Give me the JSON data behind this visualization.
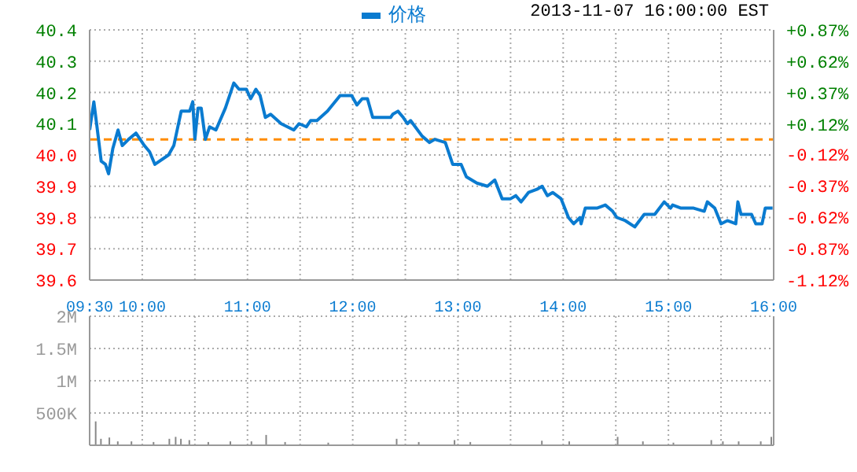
{
  "chart_data": [
    {
      "type": "line",
      "subtitle": "2013-11-07 16:00:00 EST",
      "legend": "top",
      "series": [
        {
          "name": "价格",
          "color": "#0a7bd0",
          "x": [
            9.5,
            9.54,
            9.57,
            9.61,
            9.65,
            9.68,
            9.72,
            9.77,
            9.81,
            9.87,
            9.94,
            10.02,
            10.07,
            10.12,
            10.25,
            10.3,
            10.37,
            10.45,
            10.48,
            10.5,
            10.53,
            10.56,
            10.6,
            10.64,
            10.7,
            10.79,
            10.87,
            10.92,
            10.99,
            11.03,
            11.08,
            11.12,
            11.17,
            11.22,
            11.32,
            11.44,
            11.49,
            11.56,
            11.6,
            11.66,
            11.76,
            11.88,
            11.91,
            11.99,
            12.04,
            12.09,
            12.14,
            12.19,
            12.36,
            12.38,
            12.43,
            12.48,
            12.52,
            12.55,
            12.66,
            12.73,
            12.78,
            12.88,
            12.95,
            13.03,
            13.08,
            13.18,
            13.28,
            13.35,
            13.42,
            13.5,
            13.55,
            13.6,
            13.67,
            13.75,
            13.8,
            13.85,
            13.9,
            13.98,
            14.05,
            14.1,
            14.16,
            14.17,
            14.21,
            14.25,
            14.32,
            14.4,
            14.47,
            14.51,
            14.59,
            14.68,
            14.77,
            14.87,
            14.96,
            15.02,
            15.04,
            15.12,
            15.24,
            15.34,
            15.37,
            15.44,
            15.5,
            15.56,
            15.64,
            15.66,
            15.69,
            15.79,
            15.83,
            15.89,
            15.92,
            15.99
          ],
          "values": [
            40.08,
            40.17,
            40.09,
            39.98,
            39.97,
            39.94,
            40.02,
            40.08,
            40.03,
            40.05,
            40.07,
            40.03,
            40.01,
            39.97,
            40.0,
            40.03,
            40.14,
            40.14,
            40.17,
            40.05,
            40.15,
            40.15,
            40.05,
            40.09,
            40.08,
            40.15,
            40.23,
            40.21,
            40.21,
            40.18,
            40.21,
            40.19,
            40.12,
            40.13,
            40.1,
            40.08,
            40.1,
            40.09,
            40.11,
            40.11,
            40.14,
            40.19,
            40.19,
            40.19,
            40.16,
            40.18,
            40.18,
            40.12,
            40.12,
            40.13,
            40.14,
            40.12,
            40.1,
            40.11,
            40.06,
            40.04,
            40.05,
            40.04,
            39.97,
            39.97,
            39.93,
            39.91,
            39.9,
            39.92,
            39.86,
            39.86,
            39.87,
            39.85,
            39.88,
            39.89,
            39.9,
            39.87,
            39.88,
            39.86,
            39.8,
            39.78,
            39.8,
            39.78,
            39.83,
            39.83,
            39.83,
            39.84,
            39.82,
            39.8,
            39.79,
            39.77,
            39.81,
            39.81,
            39.85,
            39.83,
            39.84,
            39.83,
            39.83,
            39.82,
            39.85,
            39.83,
            39.78,
            39.79,
            39.78,
            39.85,
            39.81,
            39.81,
            39.78,
            39.78,
            39.83,
            39.83
          ]
        }
      ],
      "xlim": [
        9.5,
        16
      ],
      "xticks": [
        {
          "value": 9.5,
          "label": "09:30"
        },
        {
          "value": 10,
          "label": "10:00"
        },
        {
          "value": 10.5,
          "label": null
        },
        {
          "value": 11,
          "label": "11:00"
        },
        {
          "value": 11.5,
          "label": null
        },
        {
          "value": 12,
          "label": "12:00"
        },
        {
          "value": 12.5,
          "label": null
        },
        {
          "value": 13,
          "label": "13:00"
        },
        {
          "value": 13.5,
          "label": null
        },
        {
          "value": 14,
          "label": "14:00"
        },
        {
          "value": 14.5,
          "label": null
        },
        {
          "value": 15,
          "label": "15:00"
        },
        {
          "value": 15.5,
          "label": null
        },
        {
          "value": 16,
          "label": "16:00"
        }
      ],
      "ylim": [
        39.6,
        40.4
      ],
      "yticks": [
        {
          "value": 39.6,
          "label": "39.6"
        },
        {
          "value": 39.7,
          "label": "39.7"
        },
        {
          "value": 39.8,
          "label": "39.8"
        },
        {
          "value": 39.9,
          "label": "39.9"
        },
        {
          "value": 40.0,
          "label": "40.0"
        },
        {
          "value": 40.1,
          "label": "40.1"
        },
        {
          "value": 40.2,
          "label": "40.2"
        },
        {
          "value": 40.3,
          "label": "40.3"
        },
        {
          "value": 40.4,
          "label": "40.4"
        }
      ],
      "y2lim": [
        -1.12,
        0.87
      ],
      "y2ticks": [
        {
          "value": -1.12,
          "label": "-1.12%"
        },
        {
          "value": -0.87,
          "label": "-0.87%"
        },
        {
          "value": -0.62,
          "label": "-0.62%"
        },
        {
          "value": -0.37,
          "label": "-0.37%"
        },
        {
          "value": -0.12,
          "label": "-0.12%"
        },
        {
          "value": 0.12,
          "label": "+0.12%"
        },
        {
          "value": 0.37,
          "label": "+0.37%"
        },
        {
          "value": 0.62,
          "label": "+0.62%"
        },
        {
          "value": 0.87,
          "label": "+0.87%"
        }
      ],
      "ref_lines": [
        {
          "axis": "y",
          "value": 40.05,
          "color": "#ff8c00",
          "line_style": "dashed"
        }
      ],
      "grid": true,
      "marker": "none",
      "line_style": "solid"
    },
    {
      "type": "bar",
      "tick_labels": "y",
      "grid": true,
      "x": [
        9.56,
        9.61,
        9.69,
        9.77,
        9.9,
        10.11,
        10.26,
        10.32,
        10.37,
        10.45,
        10.63,
        10.84,
        11.04,
        11.18,
        11.36,
        11.77,
        12.42,
        12.63,
        12.97,
        13.12,
        13.8,
        14.06,
        14.52,
        14.76,
        15.05,
        15.41,
        15.52,
        15.67,
        15.88,
        15.98
      ],
      "values": [
        370000,
        100000,
        120000,
        60000,
        60000,
        50000,
        100000,
        130000,
        100000,
        80000,
        50000,
        60000,
        60000,
        160000,
        50000,
        40000,
        100000,
        50000,
        80000,
        50000,
        70000,
        60000,
        130000,
        60000,
        40000,
        80000,
        60000,
        60000,
        60000,
        130000
      ],
      "color": "#888888",
      "xlim": [
        9.5,
        16
      ],
      "xticks": [
        {
          "value": 9.5,
          "label": null
        },
        {
          "value": 10,
          "label": null
        },
        {
          "value": 10.5,
          "label": null
        },
        {
          "value": 11,
          "label": null
        },
        {
          "value": 11.5,
          "label": null
        },
        {
          "value": 12,
          "label": null
        },
        {
          "value": 12.5,
          "label": null
        },
        {
          "value": 13,
          "label": null
        },
        {
          "value": 13.5,
          "label": null
        },
        {
          "value": 14,
          "label": null
        },
        {
          "value": 14.5,
          "label": null
        },
        {
          "value": 15,
          "label": null
        },
        {
          "value": 15.5,
          "label": null
        },
        {
          "value": 16,
          "label": null
        }
      ],
      "ylim": [
        0,
        2000000
      ],
      "yticks": [
        {
          "value": 500000,
          "label": "500K"
        },
        {
          "value": 1000000,
          "label": "1M"
        },
        {
          "value": 1500000,
          "label": "1.5M"
        },
        {
          "value": 2000000,
          "label": "2M"
        }
      ]
    }
  ]
}
